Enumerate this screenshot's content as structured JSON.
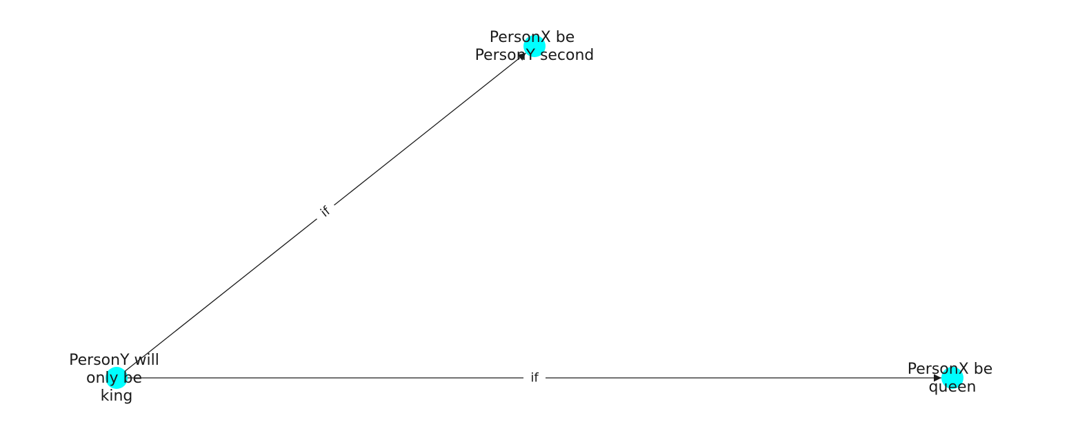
{
  "graph": {
    "node_color": "#00ffff",
    "edge_color": "#1a1a1a",
    "nodes": [
      {
        "id": "n0",
        "label": [
          "PersonY will",
          "only be",
          "king"
        ]
      },
      {
        "id": "n1",
        "label": [
          "PersonX be",
          "PersonY second"
        ]
      },
      {
        "id": "n2",
        "label": [
          "PersonX be",
          "queen"
        ]
      }
    ],
    "edges": [
      {
        "from": "n0",
        "to": "n1",
        "label": "if"
      },
      {
        "from": "n0",
        "to": "n2",
        "label": "if"
      }
    ]
  }
}
